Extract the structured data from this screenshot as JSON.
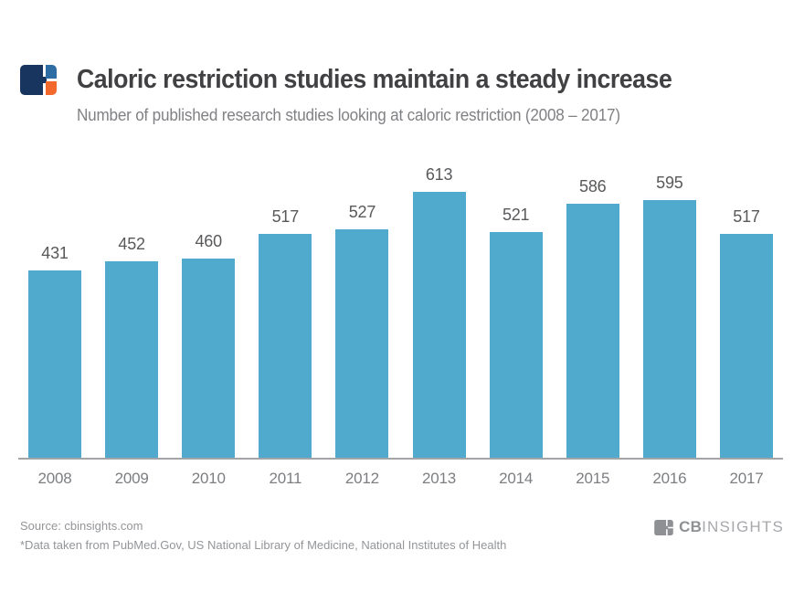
{
  "header": {
    "title": "Caloric restriction studies maintain a steady increase",
    "subtitle": "Number of published research studies looking at caloric restriction (2008 – 2017)"
  },
  "chart_data": {
    "type": "bar",
    "title": "Caloric restriction studies maintain a steady increase",
    "subtitle": "Number of published research studies looking at caloric restriction (2008 – 2017)",
    "categories": [
      "2008",
      "2009",
      "2010",
      "2011",
      "2012",
      "2013",
      "2014",
      "2015",
      "2016",
      "2017"
    ],
    "values": [
      431,
      452,
      460,
      517,
      527,
      613,
      521,
      586,
      595,
      517
    ],
    "xlabel": "",
    "ylabel": "",
    "ylim": [
      0,
      613
    ],
    "baseline": 0,
    "gridlines": false,
    "y_axis_shown": false,
    "legend": "none",
    "value_labels_position": "above bars",
    "bar_color": "#4FAACD",
    "value_label_color": "#58595B",
    "year_label_color": "#7C7E81",
    "axis_color": "#A2A4A7"
  },
  "footer": {
    "source": "Source: cbinsights.com",
    "note": "*Data taken from PubMed.Gov, US National Library of Medicine, National Institutes of Health",
    "brand_bold": "CB",
    "brand_light": "INSIGHTS"
  },
  "branding": {
    "logo_navy": "#17355F",
    "logo_blue": "#2E6DA4",
    "logo_orange": "#F2692B",
    "footer_logo_gray": "#8E9093"
  }
}
